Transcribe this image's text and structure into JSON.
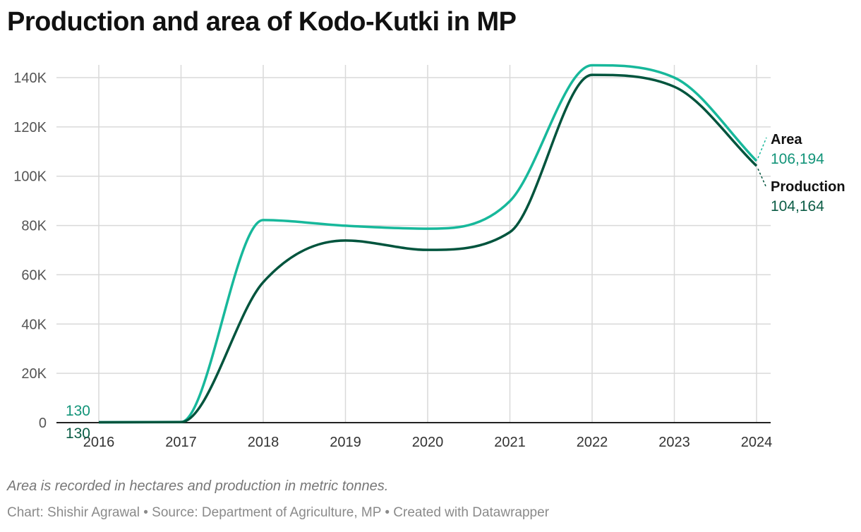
{
  "chart_data": {
    "type": "line",
    "title": "Production and area of Kodo-Kutki in MP",
    "x": [
      "2016",
      "2017",
      "2018",
      "2019",
      "2020",
      "2021",
      "2022",
      "2023",
      "2024"
    ],
    "ylim": [
      0,
      140000
    ],
    "yticks": [
      0,
      20000,
      40000,
      60000,
      80000,
      100000,
      120000,
      140000
    ],
    "ytick_labels": [
      "0",
      "20K",
      "40K",
      "60K",
      "80K",
      "100K",
      "120K",
      "140K"
    ],
    "grid": true,
    "series": [
      {
        "name": "Area",
        "color": "#17b89b",
        "label_color": "#129479",
        "values": [
          130,
          250,
          82200,
          79900,
          78700,
          89900,
          145000,
          140000,
          106194
        ],
        "start_label": "130",
        "end_label": "106,194"
      },
      {
        "name": "Production",
        "color": "#00543d",
        "label_color": "#0b5c45",
        "values": [
          130,
          200,
          57000,
          73900,
          70100,
          77300,
          141100,
          136300,
          104164
        ],
        "start_label": "130",
        "end_label": "104,164"
      }
    ]
  },
  "note": "Area is recorded in hectares and production in metric tonnes.",
  "credit": "Chart: Shishir Agrawal • Source: Department of Agriculture, MP • Created with Datawrapper"
}
